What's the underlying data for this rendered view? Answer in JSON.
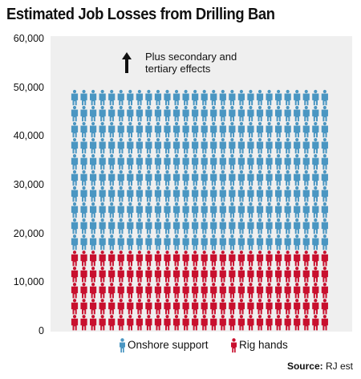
{
  "chart_data": {
    "type": "bar",
    "title": "Estimated Job Losses from Drilling Ban",
    "ylim": [
      0,
      60000
    ],
    "yticks": [
      "60,000",
      "50,000",
      "40,000",
      "30,000",
      "20,000",
      "10,000",
      "0"
    ],
    "grid": false,
    "categories": [
      ""
    ],
    "series": [
      {
        "name": "Rig hands",
        "values": [
          16000
        ],
        "color": "#c8102e"
      },
      {
        "name": "Onshore support",
        "values": [
          32000
        ],
        "color": "#4a96c2"
      }
    ],
    "stacked": true,
    "annotation": {
      "lines": [
        "Plus secondary and",
        "tertiary effects"
      ]
    },
    "legend_position": "bottom",
    "source": {
      "label": "Source:",
      "text": "RJ est"
    }
  },
  "colors": {
    "onshore": "#4a96c2",
    "rig": "#c8102e",
    "plot_bg": "#efefef"
  },
  "icons": {
    "person": "person-icon",
    "arrow": "up-arrow-icon"
  }
}
